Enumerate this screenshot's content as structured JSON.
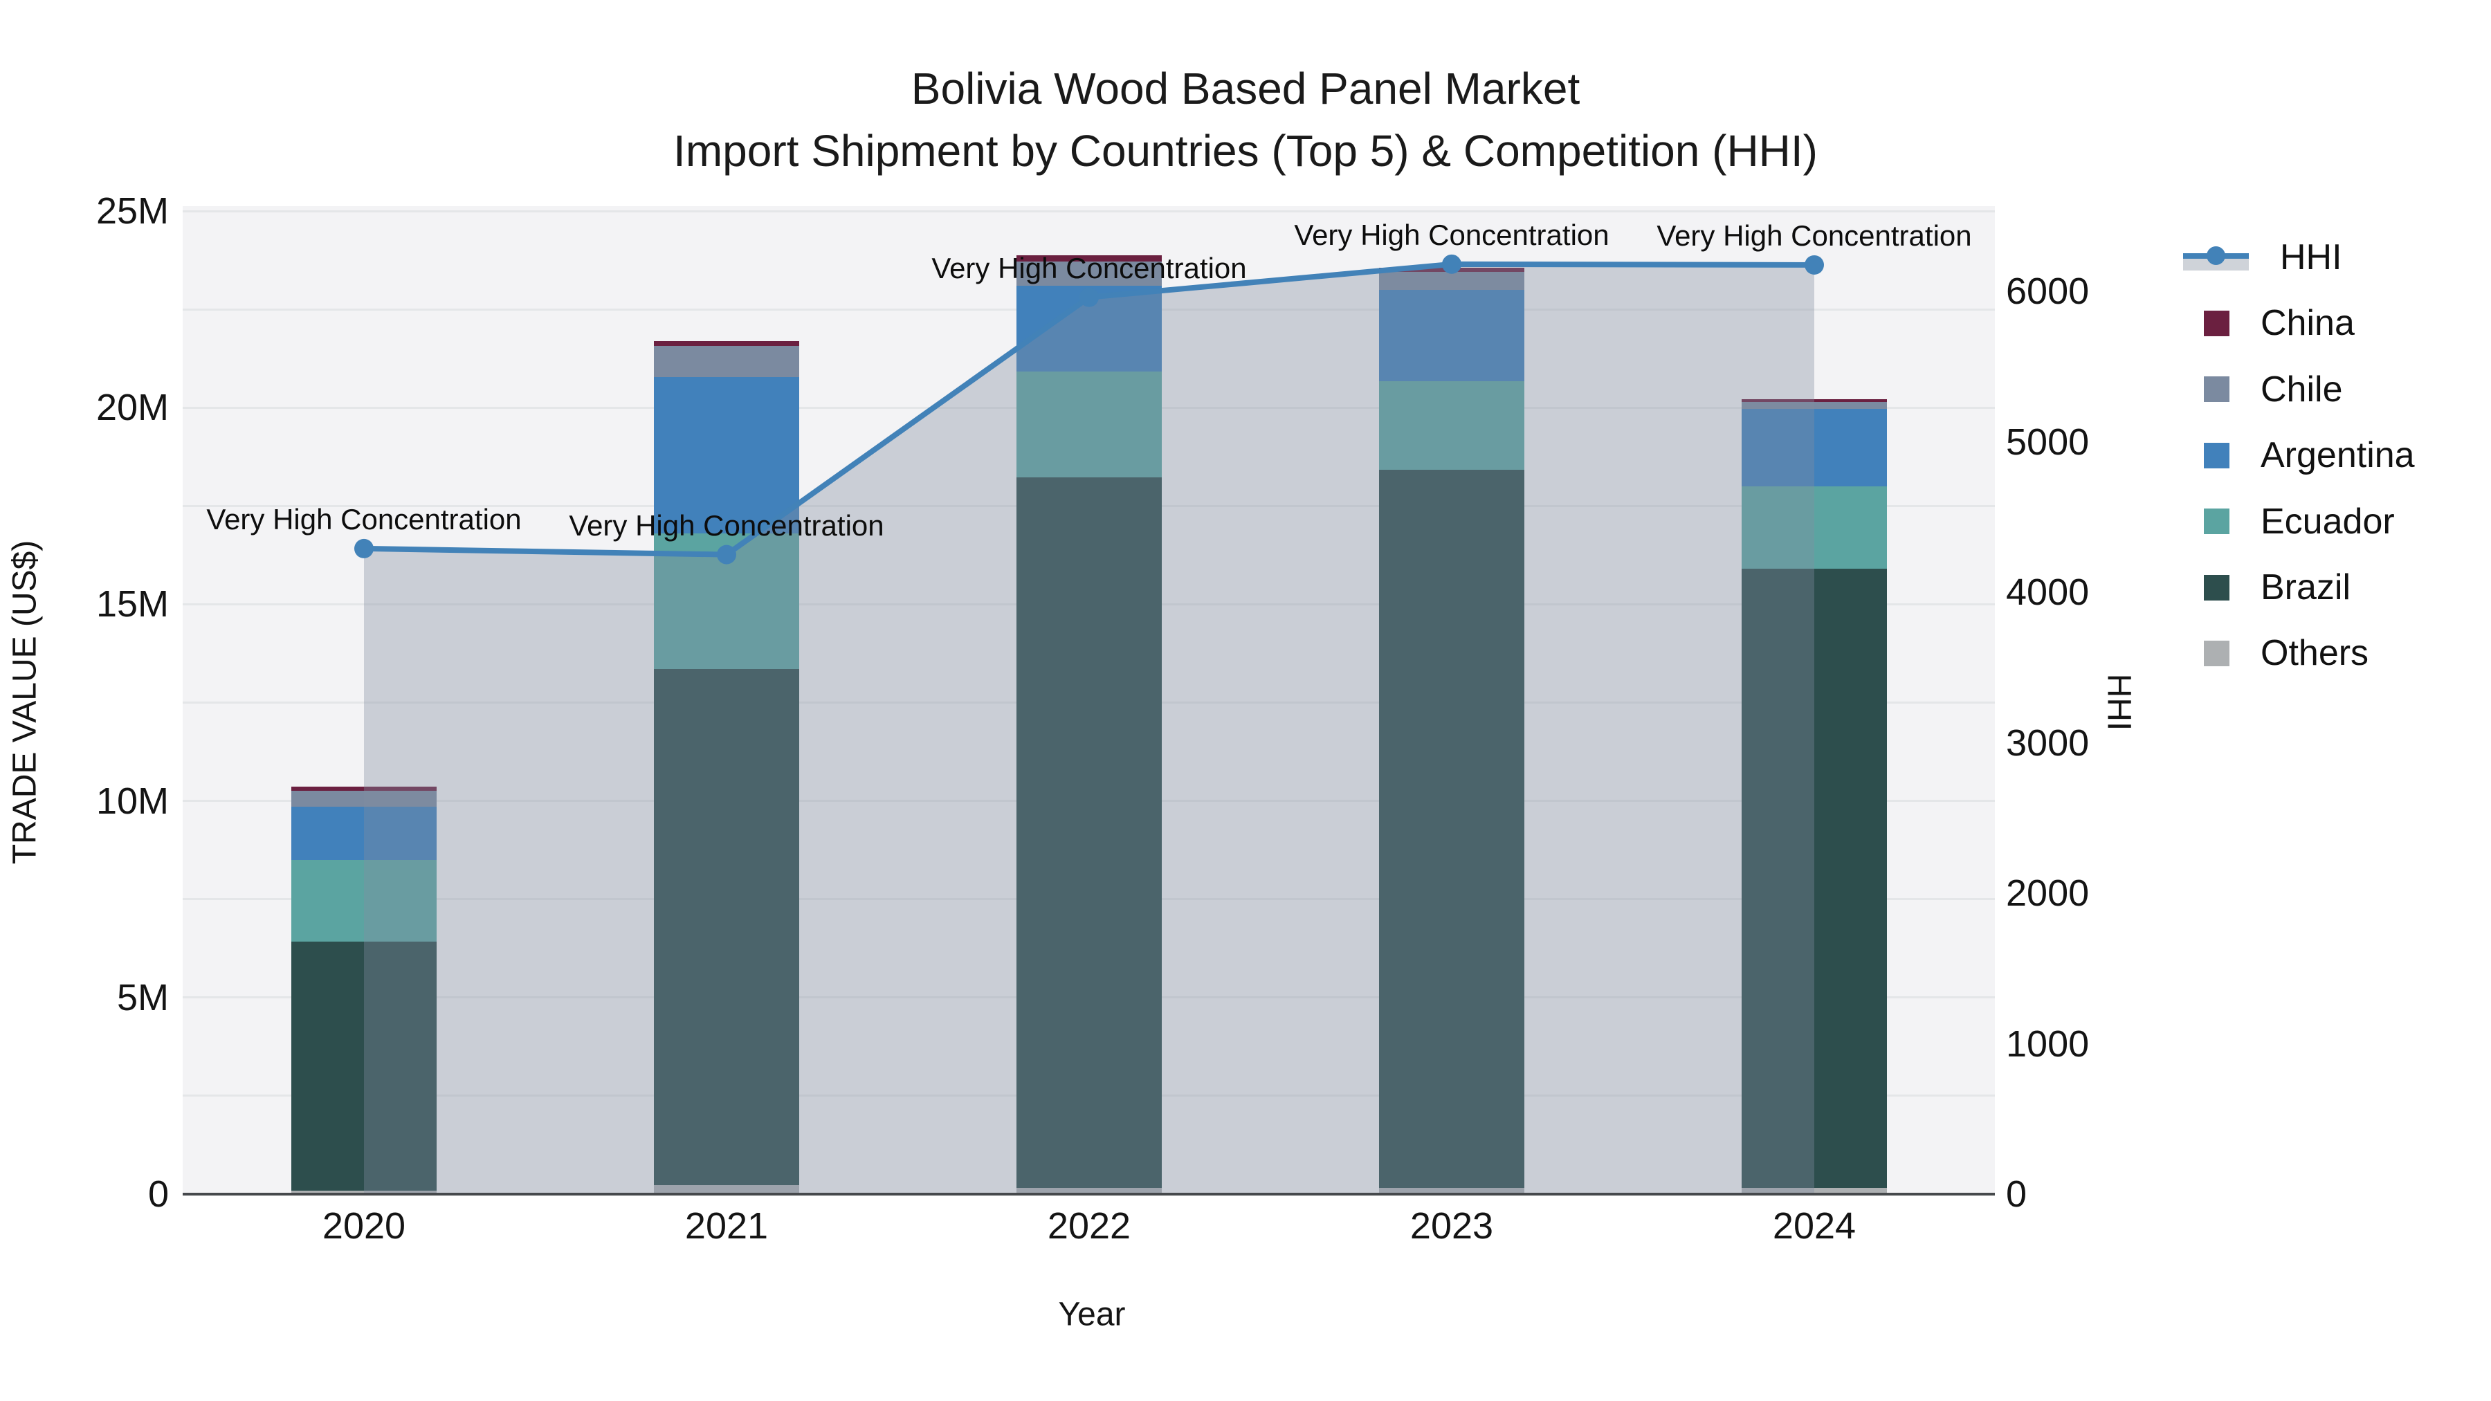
{
  "title": {
    "line1": "Bolivia Wood Based Panel Market",
    "line2": "Import Shipment by Countries (Top 5) & Competition (HHI)"
  },
  "axes": {
    "x": {
      "title": "Year",
      "tick_labels": [
        "2020",
        "2021",
        "2022",
        "2023",
        "2024"
      ]
    },
    "y_left": {
      "title": "TRADE VALUE (US$)",
      "tick_labels": [
        "0",
        "5M",
        "10M",
        "15M",
        "20M",
        "25M"
      ],
      "tick_values_musd": [
        0,
        5,
        10,
        15,
        20,
        25
      ],
      "gridline_step_musd": 2.5,
      "range_musd": [
        0,
        25.12
      ]
    },
    "y_right": {
      "title": "HHI",
      "tick_labels": [
        "0",
        "1000",
        "2000",
        "3000",
        "4000",
        "5000",
        "6000"
      ],
      "tick_values": [
        0,
        1000,
        2000,
        3000,
        4000,
        5000,
        6000
      ],
      "range": [
        0,
        6566
      ]
    }
  },
  "chart_data": {
    "type": "combo: stacked bars (left axis) + line with area fill (right axis)",
    "categories": [
      "2020",
      "2021",
      "2022",
      "2023",
      "2024"
    ],
    "bar_unit": "million US$ trade value",
    "series": [
      {
        "name": "China",
        "color": "#6b2040",
        "values_musd": [
          0.11,
          0.12,
          0.16,
          0.1,
          0.07
        ]
      },
      {
        "name": "Chile",
        "color": "#7b8aa0",
        "values_musd": [
          0.4,
          0.79,
          0.61,
          0.47,
          0.18
        ]
      },
      {
        "name": "Argentina",
        "color": "#4181bb",
        "values_musd": [
          1.37,
          3.98,
          2.18,
          2.32,
          1.97
        ]
      },
      {
        "name": "Ecuador",
        "color": "#5ba4a1",
        "values_musd": [
          2.06,
          3.45,
          2.69,
          2.25,
          2.09
        ]
      },
      {
        "name": "Brazil",
        "color": "#2d4e4d",
        "values_musd": [
          6.35,
          13.13,
          18.08,
          18.27,
          15.74
        ]
      },
      {
        "name": "Others",
        "color": "#adb0b2",
        "values_musd": [
          0.08,
          0.22,
          0.15,
          0.15,
          0.16
        ]
      }
    ],
    "stack_order_bottom_to_top": [
      "Others",
      "Brazil",
      "Ecuador",
      "Argentina",
      "Chile",
      "China"
    ],
    "totals_musd": [
      10.37,
      21.69,
      23.87,
      23.56,
      20.21
    ],
    "line_series": {
      "name": "HHI",
      "axis": "right",
      "values": [
        4290,
        4250,
        5960,
        6180,
        6175
      ]
    },
    "annotations": [
      {
        "category": "2020",
        "text": "Very High Concentration"
      },
      {
        "category": "2021",
        "text": "Very High Concentration"
      },
      {
        "category": "2022",
        "text": "Very High Concentration"
      },
      {
        "category": "2023",
        "text": "Very High Concentration"
      },
      {
        "category": "2024",
        "text": "Very High Concentration"
      }
    ]
  },
  "legend": {
    "entries": [
      {
        "label": "HHI",
        "swatch": "line-marker"
      },
      {
        "label": "China",
        "swatch": "square"
      },
      {
        "label": "Chile",
        "swatch": "square"
      },
      {
        "label": "Argentina",
        "swatch": "square"
      },
      {
        "label": "Ecuador",
        "swatch": "square"
      },
      {
        "label": "Brazil",
        "swatch": "square"
      },
      {
        "label": "Others",
        "swatch": "square"
      }
    ]
  },
  "colors": {
    "hhi_line": "#4282b8",
    "hhi_area": "rgba(130,141,160,0.36)",
    "plot_bg": "#f3f3f5",
    "gridline": "#e4e6e8",
    "axis_line": "#46494c",
    "text": "#141414"
  }
}
